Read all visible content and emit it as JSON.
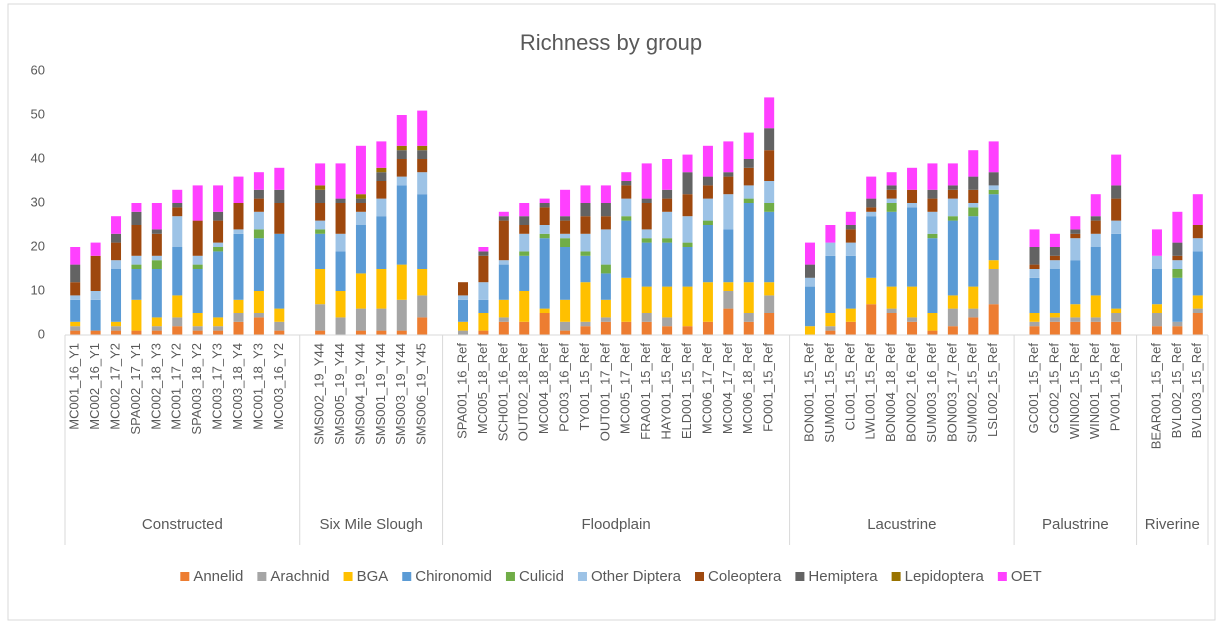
{
  "chart_data": {
    "type": "stacked_bar",
    "title": "Richness by group",
    "categories": [
      "MC001_16_Y1",
      "MC002_16_Y1",
      "MC002_17_Y2",
      "SPA002_17_Y1",
      "MC002_18_Y3",
      "MC001_17_Y2",
      "SPA003_18_Y2",
      "MC003_17_Y3",
      "MC003_18_Y4",
      "MC001_18_Y3",
      "MC003_16_Y2",
      null,
      "SMS002_19_Y44",
      "SMS005_19_Y44",
      "SMS004_19_Y44",
      "SMS001_19_Y44",
      "SMS003_19_Y44",
      "SMS006_19_Y45",
      null,
      "SPA001_16_Ref",
      "MC005_18_Ref",
      "SCH001_16_Ref",
      "OUT002_18_Ref",
      "MC004_18_Ref",
      "PC003_16_Ref",
      "TY001_15_Ref",
      "OUT001_17_Ref",
      "MC005_17_Ref",
      "FRA001_15_Ref",
      "HAY001_15_Ref",
      "ELD001_15_Ref",
      "MC006_17_Ref",
      "MC004_17_Ref",
      "MC006_18_Ref",
      "FO001_15_Ref",
      null,
      "BON001_15_Ref",
      "SUM001_15_Ref",
      "CL001_15_Ref",
      "LWL001_15_Ref",
      "BON004_18_Ref",
      "BON002_16_Ref",
      "SUM003_16_Ref",
      "BON003_17_Ref",
      "SUM002_15_Ref",
      "LSL002_15_Ref",
      null,
      "GC001_15_Ref",
      "GC002_15_Ref",
      "WIN002_15_Ref",
      "WIN001_15_Ref",
      "PV001_16_Ref",
      null,
      "BEAR001_15_Ref",
      "BVL002_15_Ref",
      "BVL003_15_Ref"
    ],
    "groups": [
      "Constructed",
      "Six Mile Slough",
      "Floodplain",
      "Lacustrine",
      "Palustrine",
      "Riverine"
    ],
    "series": [
      {
        "name": "Annelid",
        "color": "#ed7d31",
        "values": [
          1,
          1,
          1,
          1,
          1,
          2,
          1,
          1,
          3,
          4,
          1,
          null,
          1,
          0,
          1,
          1,
          1,
          4,
          null,
          0,
          1,
          3,
          3,
          5,
          1,
          2,
          3,
          3,
          3,
          2,
          2,
          3,
          6,
          3,
          5,
          null,
          0,
          1,
          3,
          7,
          5,
          3,
          1,
          2,
          4,
          7,
          null,
          2,
          3,
          3,
          3,
          3,
          null,
          2,
          2,
          5
        ]
      },
      {
        "name": "Arachnid",
        "color": "#a5a5a5",
        "values": [
          1,
          0,
          1,
          0,
          1,
          2,
          1,
          1,
          2,
          1,
          2,
          null,
          6,
          4,
          5,
          5,
          7,
          5,
          null,
          1,
          0,
          1,
          0,
          0,
          2,
          1,
          1,
          0,
          2,
          2,
          0,
          0,
          4,
          2,
          4,
          null,
          0,
          1,
          0,
          0,
          1,
          1,
          0,
          4,
          2,
          8,
          null,
          1,
          1,
          1,
          1,
          2,
          null,
          3,
          1,
          1
        ]
      },
      {
        "name": "BGA",
        "color": "#ffc000",
        "values": [
          1,
          0,
          1,
          7,
          2,
          5,
          3,
          2,
          3,
          5,
          3,
          null,
          8,
          6,
          8,
          9,
          8,
          6,
          null,
          2,
          4,
          4,
          7,
          1,
          5,
          9,
          4,
          10,
          6,
          7,
          9,
          9,
          2,
          7,
          3,
          null,
          2,
          3,
          3,
          6,
          5,
          7,
          4,
          3,
          5,
          2,
          null,
          2,
          1,
          3,
          5,
          1,
          null,
          2,
          0,
          3
        ]
      },
      {
        "name": "Chironomid",
        "color": "#5b9bd5",
        "values": [
          5,
          7,
          12,
          7,
          11,
          11,
          10,
          15,
          15,
          12,
          17,
          null,
          8,
          9,
          11,
          12,
          18,
          17,
          null,
          5,
          3,
          8,
          8,
          16,
          12,
          6,
          6,
          13,
          10,
          10,
          9,
          13,
          12,
          18,
          16,
          null,
          9,
          13,
          12,
          14,
          17,
          18,
          17,
          17,
          16,
          15,
          null,
          8,
          10,
          10,
          11,
          17,
          null,
          8,
          10,
          10
        ]
      },
      {
        "name": "Culicid",
        "color": "#70ad47",
        "values": [
          0,
          0,
          0,
          1,
          2,
          0,
          1,
          1,
          0,
          2,
          0,
          null,
          1,
          0,
          0,
          0,
          0,
          0,
          null,
          0,
          0,
          0,
          1,
          1,
          2,
          1,
          2,
          1,
          1,
          1,
          1,
          1,
          0,
          1,
          2,
          null,
          0,
          0,
          0,
          0,
          2,
          0,
          1,
          1,
          2,
          1,
          null,
          0,
          0,
          0,
          0,
          0,
          null,
          0,
          2,
          0
        ]
      },
      {
        "name": "Other Diptera",
        "color": "#9dc3e6",
        "values": [
          1,
          2,
          2,
          2,
          1,
          7,
          2,
          1,
          1,
          4,
          0,
          null,
          2,
          4,
          3,
          4,
          2,
          5,
          null,
          1,
          4,
          1,
          4,
          2,
          1,
          4,
          8,
          4,
          2,
          6,
          6,
          5,
          8,
          3,
          5,
          null,
          2,
          3,
          3,
          1,
          1,
          1,
          5,
          4,
          1,
          1,
          null,
          2,
          2,
          5,
          3,
          3,
          null,
          3,
          2,
          3
        ]
      },
      {
        "name": "Coleoptera",
        "color": "#9e480e",
        "values": [
          3,
          8,
          4,
          7,
          5,
          2,
          8,
          5,
          6,
          3,
          7,
          null,
          4,
          7,
          2,
          4,
          4,
          3,
          null,
          3,
          6,
          9,
          2,
          4,
          3,
          4,
          3,
          3,
          6,
          3,
          5,
          3,
          4,
          4,
          7,
          null,
          0,
          0,
          3,
          1,
          2,
          3,
          3,
          2,
          3,
          0,
          null,
          1,
          1,
          1,
          3,
          5,
          null,
          0,
          1,
          3
        ]
      },
      {
        "name": "Hemiptera",
        "color": "#636363",
        "values": [
          4,
          0,
          2,
          3,
          1,
          1,
          0,
          2,
          0,
          2,
          3,
          null,
          3,
          1,
          1,
          2,
          2,
          2,
          null,
          0,
          1,
          1,
          2,
          1,
          1,
          3,
          3,
          1,
          1,
          2,
          5,
          2,
          1,
          2,
          5,
          null,
          3,
          0,
          1,
          2,
          1,
          0,
          2,
          1,
          3,
          3,
          null,
          4,
          2,
          1,
          1,
          3,
          null,
          0,
          3,
          0
        ]
      },
      {
        "name": "Lepidoptera",
        "color": "#997300",
        "values": [
          0,
          0,
          0,
          0,
          0,
          0,
          0,
          0,
          0,
          0,
          0,
          null,
          1,
          0,
          1,
          1,
          1,
          1,
          null,
          0,
          0,
          0,
          0,
          0,
          0,
          0,
          0,
          0,
          0,
          0,
          0,
          0,
          0,
          0,
          0,
          null,
          0,
          0,
          0,
          0,
          0,
          0,
          0,
          0,
          0,
          0,
          null,
          0,
          0,
          0,
          0,
          0,
          null,
          0,
          0,
          0
        ]
      },
      {
        "name": "OET",
        "color": "#ff40ff",
        "values": [
          4,
          3,
          4,
          2,
          6,
          3,
          8,
          6,
          6,
          4,
          5,
          null,
          5,
          8,
          11,
          6,
          7,
          8,
          null,
          0,
          1,
          1,
          3,
          1,
          6,
          4,
          4,
          2,
          8,
          7,
          4,
          7,
          7,
          6,
          7,
          null,
          5,
          4,
          3,
          5,
          3,
          5,
          6,
          5,
          6,
          7,
          null,
          4,
          3,
          3,
          5,
          7,
          null,
          6,
          7,
          7
        ]
      }
    ],
    "ylim": [
      0,
      60
    ],
    "yticks": [
      0,
      10,
      20,
      30,
      40,
      50,
      60
    ],
    "grid": false,
    "legend": "bottom"
  }
}
